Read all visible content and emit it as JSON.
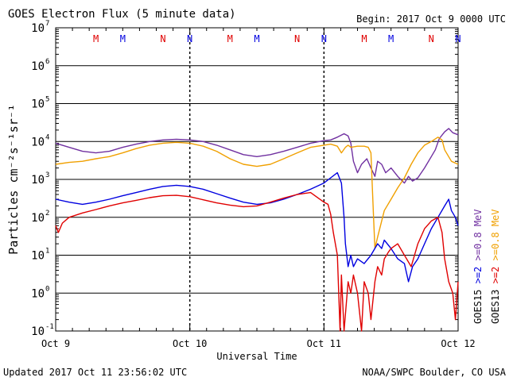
{
  "chart_data": {
    "type": "line",
    "title": "GOES Electron Flux (5 minute data)",
    "begin": "Begin: 2017 Oct 9 0000 UTC",
    "xlabel": "Universal Time",
    "ylabel": "Particles cm⁻²s⁻¹sr⁻¹",
    "x_ticks": [
      "Oct 9",
      "Oct 10",
      "Oct 11",
      "Oct 12"
    ],
    "xlim_days": [
      0,
      3
    ],
    "y_scale": "log",
    "ylim": [
      0.1,
      10000000
    ],
    "y_ticks": [
      {
        "base": "10",
        "exp": "-1"
      },
      {
        "base": "10",
        "exp": "0"
      },
      {
        "base": "10",
        "exp": "1"
      },
      {
        "base": "10",
        "exp": "2"
      },
      {
        "base": "10",
        "exp": "3"
      },
      {
        "base": "10",
        "exp": "4"
      },
      {
        "base": "10",
        "exp": "5"
      },
      {
        "base": "10",
        "exp": "6"
      },
      {
        "base": "10",
        "exp": "7"
      }
    ],
    "threshold": 1000,
    "markers": [
      {
        "label": "M",
        "color": "#e00000",
        "day": 0.3
      },
      {
        "label": "M",
        "color": "#0000e0",
        "day": 0.5
      },
      {
        "label": "N",
        "color": "#e00000",
        "day": 0.8
      },
      {
        "label": "N",
        "color": "#0000e0",
        "day": 1.0
      },
      {
        "label": "M",
        "color": "#e00000",
        "day": 1.3
      },
      {
        "label": "M",
        "color": "#0000e0",
        "day": 1.5
      },
      {
        "label": "N",
        "color": "#e00000",
        "day": 1.8
      },
      {
        "label": "N",
        "color": "#0000e0",
        "day": 2.0
      },
      {
        "label": "M",
        "color": "#e00000",
        "day": 2.3
      },
      {
        "label": "M",
        "color": "#0000e0",
        "day": 2.5
      },
      {
        "label": "N",
        "color": "#e00000",
        "day": 2.8
      },
      {
        "label": "N",
        "color": "#0000e0",
        "day": 3.0
      }
    ],
    "legend_groups": [
      {
        "sat": "GOES15",
        "items": [
          {
            "text": ">=2",
            "color": "#0000e0"
          },
          {
            "text": ">=0.8 MeV",
            "color": "#7030a0"
          }
        ]
      },
      {
        "sat": "GOES13",
        "items": [
          {
            "text": ">=2",
            "color": "#e00000"
          },
          {
            "text": ">=0.8 MeV",
            "color": "#f0a000"
          }
        ]
      }
    ],
    "series": [
      {
        "name": "GOES15 >=0.8 MeV",
        "color": "#7030a0",
        "points": [
          [
            0,
            9000
          ],
          [
            0.1,
            7000
          ],
          [
            0.2,
            5500
          ],
          [
            0.3,
            5000
          ],
          [
            0.4,
            5500
          ],
          [
            0.5,
            7000
          ],
          [
            0.6,
            8500
          ],
          [
            0.7,
            10000
          ],
          [
            0.8,
            11000
          ],
          [
            0.9,
            11500
          ],
          [
            1.0,
            11000
          ],
          [
            1.1,
            10000
          ],
          [
            1.2,
            8000
          ],
          [
            1.3,
            6000
          ],
          [
            1.4,
            4500
          ],
          [
            1.5,
            4000
          ],
          [
            1.6,
            4500
          ],
          [
            1.7,
            5500
          ],
          [
            1.8,
            7000
          ],
          [
            1.9,
            9000
          ],
          [
            2.0,
            10500
          ],
          [
            2.05,
            11000
          ],
          [
            2.1,
            13000
          ],
          [
            2.15,
            16000
          ],
          [
            2.18,
            14000
          ],
          [
            2.2,
            9000
          ],
          [
            2.22,
            3000
          ],
          [
            2.25,
            1500
          ],
          [
            2.28,
            2500
          ],
          [
            2.32,
            3500
          ],
          [
            2.35,
            2000
          ],
          [
            2.38,
            1200
          ],
          [
            2.4,
            3000
          ],
          [
            2.43,
            2500
          ],
          [
            2.46,
            1500
          ],
          [
            2.5,
            2000
          ],
          [
            2.55,
            1200
          ],
          [
            2.6,
            800
          ],
          [
            2.63,
            1200
          ],
          [
            2.66,
            900
          ],
          [
            2.7,
            1100
          ],
          [
            2.75,
            2000
          ],
          [
            2.8,
            4000
          ],
          [
            2.83,
            6000
          ],
          [
            2.86,
            12000
          ],
          [
            2.9,
            18000
          ],
          [
            2.93,
            22000
          ],
          [
            2.96,
            17000
          ],
          [
            3.0,
            15000
          ]
        ]
      },
      {
        "name": "GOES13 >=0.8 MeV",
        "color": "#f0a000",
        "points": [
          [
            0,
            2500
          ],
          [
            0.1,
            2800
          ],
          [
            0.2,
            3000
          ],
          [
            0.3,
            3500
          ],
          [
            0.4,
            4000
          ],
          [
            0.5,
            5000
          ],
          [
            0.6,
            6500
          ],
          [
            0.7,
            8000
          ],
          [
            0.8,
            9000
          ],
          [
            0.9,
            9500
          ],
          [
            1.0,
            9000
          ],
          [
            1.1,
            7500
          ],
          [
            1.2,
            5500
          ],
          [
            1.3,
            3500
          ],
          [
            1.4,
            2500
          ],
          [
            1.5,
            2200
          ],
          [
            1.6,
            2500
          ],
          [
            1.7,
            3500
          ],
          [
            1.8,
            5000
          ],
          [
            1.9,
            7000
          ],
          [
            2.0,
            8000
          ],
          [
            2.05,
            8500
          ],
          [
            2.1,
            7500
          ],
          [
            2.13,
            5000
          ],
          [
            2.16,
            7000
          ],
          [
            2.18,
            8000
          ],
          [
            2.2,
            7000
          ],
          [
            2.25,
            7500
          ],
          [
            2.3,
            7500
          ],
          [
            2.33,
            7000
          ],
          [
            2.35,
            5000
          ],
          [
            2.37,
            100
          ],
          [
            2.38,
            15
          ],
          [
            2.4,
            30
          ],
          [
            2.45,
            150
          ],
          [
            2.5,
            300
          ],
          [
            2.55,
            600
          ],
          [
            2.6,
            1100
          ],
          [
            2.65,
            2500
          ],
          [
            2.7,
            5000
          ],
          [
            2.75,
            8000
          ],
          [
            2.8,
            10000
          ],
          [
            2.85,
            13000
          ],
          [
            2.88,
            11000
          ],
          [
            2.9,
            6000
          ],
          [
            2.95,
            3000
          ],
          [
            3.0,
            2500
          ]
        ]
      },
      {
        "name": "GOES15 >=2 MeV",
        "color": "#0000e0",
        "points": [
          [
            0,
            300
          ],
          [
            0.1,
            250
          ],
          [
            0.2,
            220
          ],
          [
            0.3,
            250
          ],
          [
            0.4,
            300
          ],
          [
            0.5,
            370
          ],
          [
            0.6,
            450
          ],
          [
            0.7,
            550
          ],
          [
            0.8,
            650
          ],
          [
            0.9,
            700
          ],
          [
            1.0,
            650
          ],
          [
            1.1,
            550
          ],
          [
            1.2,
            420
          ],
          [
            1.3,
            320
          ],
          [
            1.4,
            250
          ],
          [
            1.5,
            220
          ],
          [
            1.6,
            240
          ],
          [
            1.7,
            300
          ],
          [
            1.8,
            400
          ],
          [
            1.9,
            550
          ],
          [
            2.0,
            800
          ],
          [
            2.05,
            1100
          ],
          [
            2.1,
            1500
          ],
          [
            2.13,
            800
          ],
          [
            2.15,
            100
          ],
          [
            2.16,
            20
          ],
          [
            2.18,
            5
          ],
          [
            2.2,
            10
          ],
          [
            2.22,
            5
          ],
          [
            2.25,
            8
          ],
          [
            2.3,
            6
          ],
          [
            2.35,
            10
          ],
          [
            2.4,
            20
          ],
          [
            2.43,
            15
          ],
          [
            2.45,
            25
          ],
          [
            2.5,
            15
          ],
          [
            2.55,
            8
          ],
          [
            2.6,
            6
          ],
          [
            2.63,
            2
          ],
          [
            2.66,
            5
          ],
          [
            2.7,
            8
          ],
          [
            2.75,
            20
          ],
          [
            2.8,
            50
          ],
          [
            2.85,
            100
          ],
          [
            2.9,
            200
          ],
          [
            2.93,
            300
          ],
          [
            2.95,
            150
          ],
          [
            2.98,
            100
          ],
          [
            3.0,
            60
          ]
        ]
      },
      {
        "name": "GOES13 >=2 MeV",
        "color": "#e00000",
        "points": [
          [
            0,
            60
          ],
          [
            0.02,
            40
          ],
          [
            0.05,
            70
          ],
          [
            0.1,
            100
          ],
          [
            0.2,
            130
          ],
          [
            0.3,
            160
          ],
          [
            0.4,
            200
          ],
          [
            0.5,
            240
          ],
          [
            0.6,
            280
          ],
          [
            0.7,
            330
          ],
          [
            0.8,
            370
          ],
          [
            0.9,
            380
          ],
          [
            1.0,
            350
          ],
          [
            1.1,
            290
          ],
          [
            1.2,
            240
          ],
          [
            1.3,
            210
          ],
          [
            1.4,
            190
          ],
          [
            1.5,
            200
          ],
          [
            1.6,
            250
          ],
          [
            1.7,
            320
          ],
          [
            1.8,
            400
          ],
          [
            1.9,
            450
          ],
          [
            2.0,
            250
          ],
          [
            2.03,
            220
          ],
          [
            2.05,
            120
          ],
          [
            2.07,
            40
          ],
          [
            2.1,
            10
          ],
          [
            2.12,
            0.1
          ],
          [
            2.13,
            3
          ],
          [
            2.15,
            0.1
          ],
          [
            2.18,
            2
          ],
          [
            2.2,
            1
          ],
          [
            2.22,
            3
          ],
          [
            2.25,
            1
          ],
          [
            2.28,
            0.1
          ],
          [
            2.3,
            2
          ],
          [
            2.33,
            1
          ],
          [
            2.35,
            0.2
          ],
          [
            2.38,
            2
          ],
          [
            2.4,
            5
          ],
          [
            2.43,
            3
          ],
          [
            2.45,
            8
          ],
          [
            2.48,
            12
          ],
          [
            2.5,
            15
          ],
          [
            2.55,
            20
          ],
          [
            2.6,
            10
          ],
          [
            2.65,
            5
          ],
          [
            2.7,
            20
          ],
          [
            2.75,
            50
          ],
          [
            2.8,
            80
          ],
          [
            2.85,
            100
          ],
          [
            2.88,
            40
          ],
          [
            2.9,
            8
          ],
          [
            2.93,
            2
          ],
          [
            2.96,
            1
          ],
          [
            2.98,
            0.2
          ],
          [
            3.0,
            2
          ]
        ]
      }
    ]
  },
  "footer": {
    "updated": "Updated 2017 Oct 11 23:56:02 UTC",
    "credit": "NOAA/SWPC Boulder, CO USA"
  }
}
